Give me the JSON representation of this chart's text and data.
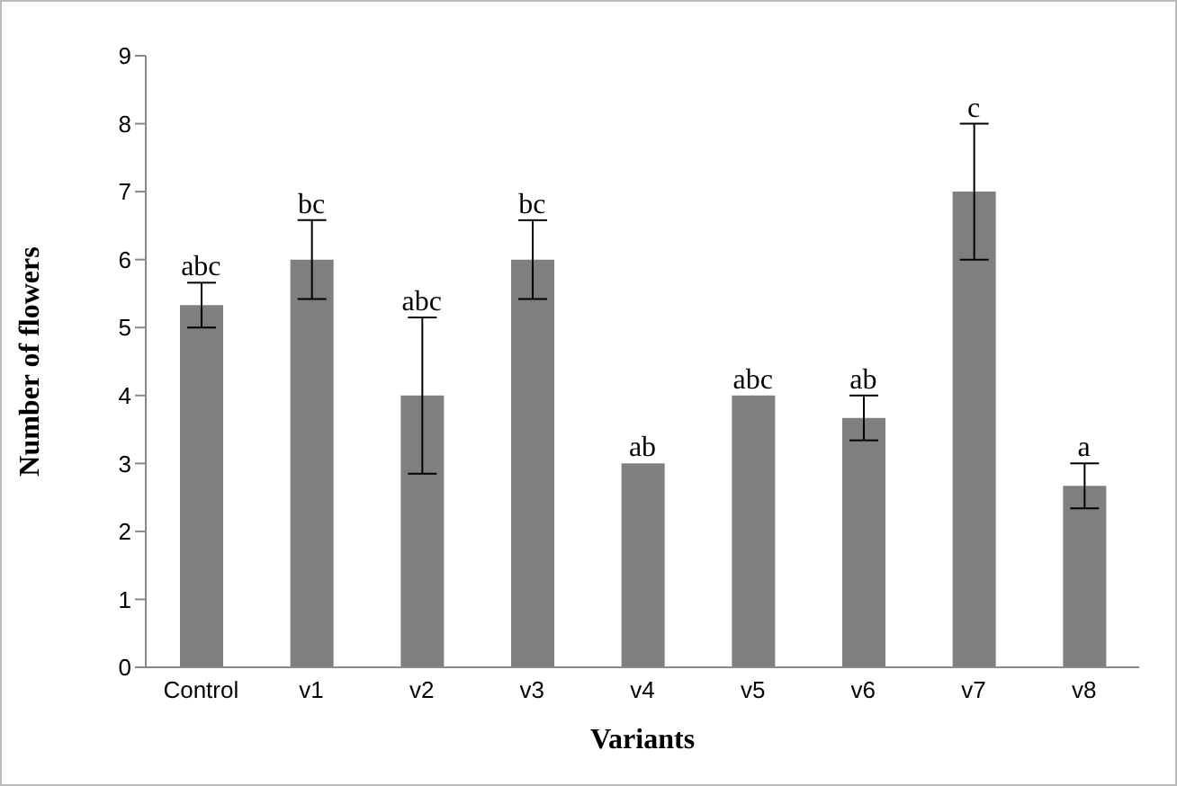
{
  "chart_data": {
    "type": "bar",
    "xlabel": "Variants",
    "ylabel": "Number of flowers",
    "categories": [
      "Control",
      "v1",
      "v2",
      "v3",
      "v4",
      "v5",
      "v6",
      "v7",
      "v8"
    ],
    "values": [
      5.33,
      6,
      4,
      6,
      3,
      4,
      3.67,
      7,
      2.67
    ],
    "errors": [
      0.33,
      0.58,
      1.15,
      0.58,
      0,
      0,
      0.33,
      1,
      0.33
    ],
    "color": "#7f7f7f",
    "ylim": [
      0,
      9
    ],
    "yticks": [
      0,
      1,
      2,
      3,
      4,
      5,
      6,
      7,
      8,
      9
    ],
    "grid": false,
    "legend": false,
    "annotations": [
      {
        "text": "abc",
        "x": "Control",
        "y": 5.67
      },
      {
        "text": "bc",
        "x": "v1",
        "y": 6.58
      },
      {
        "text": "abc",
        "x": "v2",
        "y": 5.15
      },
      {
        "text": "bc",
        "x": "v3",
        "y": 6.58
      },
      {
        "text": "ab",
        "x": "v4",
        "y": 3
      },
      {
        "text": "abc",
        "x": "v5",
        "y": 4
      },
      {
        "text": "ab",
        "x": "v6",
        "y": 4
      },
      {
        "text": "c",
        "x": "v7",
        "y": 8
      },
      {
        "text": "a",
        "x": "v8",
        "y": 3
      }
    ]
  }
}
